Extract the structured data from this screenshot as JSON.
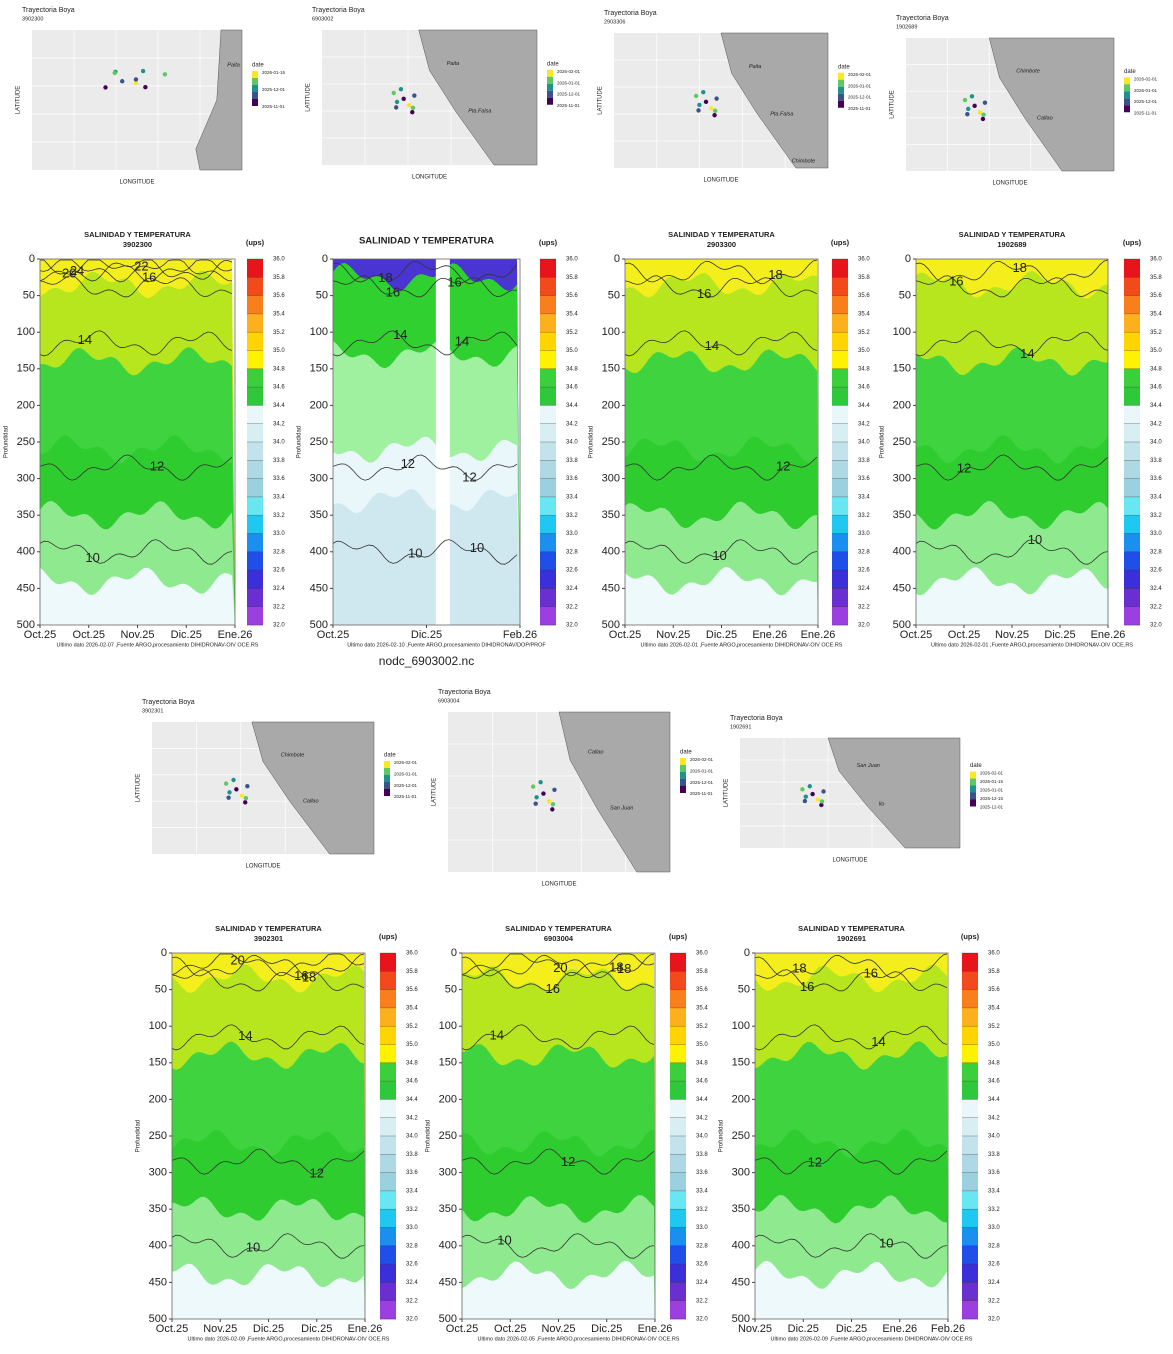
{
  "maps": [
    {
      "title": "Trayectoria Boya",
      "id": "3902300",
      "x_label": "LONGITUDE",
      "y_label": "LATITUDE",
      "legend_title": "date",
      "legend": [
        "2026-01-15",
        "2025-12-01",
        "2025-11-01"
      ],
      "places": [
        "Paita"
      ]
    },
    {
      "title": "Trayectoria Boya",
      "id": "6903002",
      "x_label": "LONGITUDE",
      "y_label": "LATITUDE",
      "legend_title": "date",
      "legend": [
        "2026-02-01",
        "2026-01-01",
        "2025-12-01",
        "2025-11-01"
      ],
      "places": [
        "Paita",
        "Pta.Falsa"
      ]
    },
    {
      "title": "Trayectoria Boya",
      "id": "2903306",
      "x_label": "LONGITUDE",
      "y_label": "LATITUDE",
      "legend_title": "date",
      "legend": [
        "2026-02-01",
        "2026-01-01",
        "2025-12-01",
        "2025-11-01"
      ],
      "places": [
        "Paita",
        "Pta.Falsa",
        "Chimbote"
      ]
    },
    {
      "title": "Trayectoria Boya",
      "id": "1902689",
      "x_label": "LONGITUDE",
      "y_label": "LATITUDE",
      "legend_title": "date",
      "legend": [
        "2026-02-01",
        "2026-01-01",
        "2025-12-01",
        "2025-11-01"
      ],
      "places": [
        "Chimbote",
        "Callao"
      ]
    },
    {
      "title": "Trayectoria Boya",
      "id": "3902301",
      "x_label": "LONGITUDE",
      "y_label": "LATITUDE",
      "legend_title": "date",
      "legend": [
        "2026-02-01",
        "2026-01-01",
        "2025-12-01",
        "2025-11-01"
      ],
      "places": [
        "Chimbote",
        "Callao"
      ]
    },
    {
      "title": "Trayectoria Boya",
      "id": "6903004",
      "x_label": "LONGITUDE",
      "y_label": "LATITUDE",
      "legend_title": "date",
      "legend": [
        "2026-02-01",
        "2026-01-01",
        "2025-12-01",
        "2025-11-01"
      ],
      "places": [
        "Callao",
        "San Juan"
      ]
    },
    {
      "title": "Trayectoria Boya",
      "id": "1902691",
      "x_label": "LONGITUDE",
      "y_label": "LATITUDE",
      "legend_title": "date",
      "legend": [
        "2026-02-01",
        "2026-01-15",
        "2026-01-01",
        "2025-12-15",
        "2025-12-01"
      ],
      "places": [
        "San Juan",
        "Ilo"
      ]
    }
  ],
  "depth_ticks": [
    0,
    50,
    100,
    150,
    200,
    250,
    300,
    350,
    400,
    450,
    500
  ],
  "colorbar_ticks": [
    "36.0",
    "35.8",
    "35.6",
    "35.4",
    "35.2",
    "35.0",
    "34.8",
    "34.6",
    "34.4",
    "34.2",
    "34.0",
    "33.8",
    "33.6",
    "33.4",
    "33.2",
    "33.0",
    "32.8",
    "32.6",
    "32.4",
    "32.2",
    "32.0"
  ],
  "sections": [
    {
      "title": "SALINIDAD Y TEMPERATURA",
      "id": "3902300",
      "unit": "(ups)",
      "y_label": "Profundidad",
      "xticks": [
        "Oct.25",
        "Oct.25",
        "Nov.25",
        "Dic.25",
        "Ene.26"
      ],
      "contours": [
        "20",
        "22",
        "24",
        "16",
        "14",
        "12",
        "10"
      ],
      "footer": "Ultimo dato 2026-02-07 ,Fuente ARGO,procesamiento DIHIDRONAV-OIV OCE.RS"
    },
    {
      "title": "SALINIDAD Y TEMPERATURA",
      "unit": "(ups)",
      "y_label": "Profundidad",
      "xticks": [
        "Oct.25",
        "Dic.25",
        "Feb.26"
      ],
      "contours": [
        "18",
        "16",
        "16",
        "14",
        "14",
        "12",
        "12",
        "10",
        "10"
      ],
      "footer": "Ultimo dato 2026-02-10 ,Fuente ARGO,procesamiento DIHIDRONAV/DOP/PROF",
      "caption": "nodc_6903002.nc"
    },
    {
      "title": "SALINIDAD Y TEMPERATURA",
      "id": "2903300",
      "unit": "(ups)",
      "y_label": "Profundidad",
      "xticks": [
        "Oct.25",
        "Nov.25",
        "Dic.25",
        "Ene.26",
        "Ene.26"
      ],
      "contours": [
        "16",
        "18",
        "14",
        "12",
        "10"
      ],
      "footer": "Ultimo dato 2026-02-01 ,Fuente ARGO,procesamiento DIHIDRONAV-OIV OCE.RS"
    },
    {
      "title": "SALINIDAD Y TEMPERATURA",
      "id": "1902689",
      "unit": "(ups)",
      "y_label": "Profundidad",
      "xticks": [
        "Oct.25",
        "Oct.25",
        "Nov.25",
        "Dic.25",
        "Ene.26"
      ],
      "contours": [
        "18",
        "16",
        "14",
        "12",
        "10"
      ],
      "footer": "Ultimo dato 2026-02-01 ,Fuente ARGO,procesamiento DIHIDRONAV-OIV OCE.RS"
    },
    {
      "title": "SALINIDAD Y TEMPERATURA",
      "id": "3902301",
      "unit": "(ups)",
      "y_label": "Profundidad",
      "xticks": [
        "Oct.25",
        "Nov.25",
        "Dic.25",
        "Dic.25",
        "Ene.26"
      ],
      "contours": [
        "16",
        "20",
        "18",
        "14",
        "12",
        "10"
      ],
      "footer": "Ultimo dato 2026-02-09 ,Fuente ARGO,procesamiento DIHIDRONAV-OIV OCE.RS"
    },
    {
      "title": "SALINIDAD Y TEMPERATURA",
      "id": "6903004",
      "unit": "(ups)",
      "y_label": "Profundidad",
      "xticks": [
        "Oct.25",
        "Oct.25",
        "Nov.25",
        "Dic.25",
        "Ene.26"
      ],
      "contours": [
        "18",
        "16",
        "18",
        "20",
        "14",
        "12",
        "10"
      ],
      "footer": "Ultimo dato 2026-02-05 ,Fuente ARGO,procesamiento DIHIDRONAV-OIV OCE.RS"
    },
    {
      "title": "SALINIDAD Y TEMPERATURA",
      "id": "1902691",
      "unit": "(ups)",
      "y_label": "Profundidad",
      "xticks": [
        "Nov.25",
        "Dic.25",
        "Dic.25",
        "Ene.26",
        "Feb.26"
      ],
      "contours": [
        "18",
        "16",
        "16",
        "14",
        "12",
        "10"
      ],
      "footer": "Ultimo dato 2026-02-09 ,Fuente ARGO,procesamiento DIHIDRONAV-OIV OCE.RS"
    }
  ]
}
